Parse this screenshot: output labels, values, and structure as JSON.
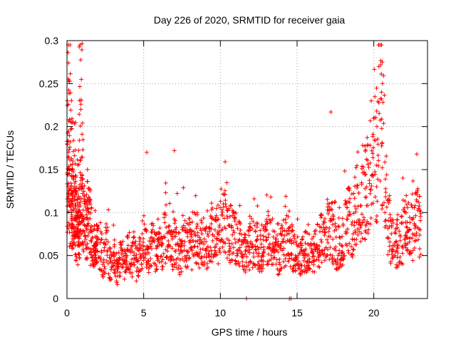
{
  "chart_data": {
    "type": "scatter",
    "title": "Day 226 of 2020, SRMTID for receiver gaia",
    "xlabel": "GPS time / hours",
    "ylabel": "SRMTID / TECUs",
    "xlim": [
      0,
      23.5
    ],
    "ylim": [
      0,
      0.3
    ],
    "x_ticks": [
      0,
      5,
      10,
      15,
      20
    ],
    "x_tick_labels": [
      "0",
      "5",
      "10",
      "15",
      "20"
    ],
    "y_ticks": [
      0,
      0.05,
      0.1,
      0.15,
      0.2,
      0.25,
      0.3
    ],
    "y_tick_labels": [
      "0",
      "0.05",
      "0.1",
      "0.15",
      "0.2",
      "0.25",
      "0.3"
    ],
    "grid": true,
    "marker": "+",
    "color": "#ff0000",
    "series": [
      {
        "name": "SRMTID",
        "x": [
          0.05,
          0.1,
          0.15,
          0.2,
          0.25,
          0.3,
          0.35,
          0.4,
          0.45,
          0.5,
          0.55,
          0.6,
          0.65,
          0.7,
          0.75,
          0.8,
          0.85,
          0.9,
          0.95,
          1.0,
          1.1,
          1.2,
          1.3,
          1.4,
          1.5,
          1.6,
          1.7,
          1.8,
          1.9,
          2.0,
          2.2,
          2.4,
          2.6,
          2.8,
          3.0,
          3.2,
          3.4,
          3.6,
          3.8,
          4.0,
          4.2,
          4.4,
          4.6,
          4.8,
          5.0,
          5.2,
          5.4,
          5.6,
          5.8,
          6.0,
          6.2,
          6.4,
          6.6,
          6.8,
          7.0,
          7.2,
          7.4,
          7.6,
          7.8,
          8.0,
          8.2,
          8.4,
          8.6,
          8.8,
          9.0,
          9.2,
          9.4,
          9.6,
          9.8,
          10.0,
          10.2,
          10.4,
          10.6,
          10.8,
          11.0,
          11.2,
          11.4,
          11.6,
          11.8,
          12.0,
          12.2,
          12.4,
          12.6,
          12.8,
          13.0,
          13.2,
          13.4,
          13.6,
          13.8,
          14.0,
          14.2,
          14.4,
          14.6,
          14.8,
          15.0,
          15.2,
          15.4,
          15.6,
          15.8,
          16.0,
          16.2,
          16.4,
          16.6,
          16.8,
          17.0,
          17.2,
          17.4,
          17.6,
          17.8,
          18.0,
          18.2,
          18.4,
          18.6,
          18.8,
          19.0,
          19.2,
          19.4,
          19.6,
          19.8,
          20.0,
          20.2,
          20.4,
          20.6,
          20.8,
          21.0,
          21.2,
          21.4,
          21.6,
          21.8,
          22.0,
          22.2,
          22.4,
          22.6,
          22.8,
          23.0
        ],
        "y": [
          0.13,
          0.17,
          0.2,
          0.18,
          0.1,
          0.085,
          0.12,
          0.15,
          0.11,
          0.09,
          0.1,
          0.13,
          0.08,
          0.09,
          0.07,
          0.1,
          0.12,
          0.22,
          0.16,
          0.11,
          0.09,
          0.1,
          0.08,
          0.11,
          0.09,
          0.07,
          0.06,
          0.05,
          0.055,
          0.06,
          0.05,
          0.045,
          0.06,
          0.04,
          0.05,
          0.035,
          0.045,
          0.05,
          0.04,
          0.055,
          0.045,
          0.06,
          0.04,
          0.05,
          0.07,
          0.06,
          0.05,
          0.065,
          0.055,
          0.06,
          0.05,
          0.07,
          0.06,
          0.055,
          0.065,
          0.06,
          0.05,
          0.07,
          0.06,
          0.065,
          0.055,
          0.07,
          0.06,
          0.065,
          0.07,
          0.06,
          0.075,
          0.065,
          0.07,
          0.08,
          0.09,
          0.085,
          0.075,
          0.08,
          0.07,
          0.065,
          0.06,
          0.055,
          0.06,
          0.07,
          0.065,
          0.06,
          0.055,
          0.06,
          0.065,
          0.07,
          0.06,
          0.055,
          0.05,
          0.06,
          0.065,
          0.07,
          0.06,
          0.055,
          0.05,
          0.045,
          0.05,
          0.055,
          0.06,
          0.05,
          0.055,
          0.06,
          0.07,
          0.065,
          0.08,
          0.075,
          0.07,
          0.06,
          0.065,
          0.07,
          0.08,
          0.09,
          0.085,
          0.1,
          0.095,
          0.11,
          0.12,
          0.13,
          0.15,
          0.19,
          0.16,
          0.24,
          0.18,
          0.12,
          0.09,
          0.07,
          0.06,
          0.065,
          0.07,
          0.08,
          0.085,
          0.075,
          0.08,
          0.09,
          0.085
        ]
      }
    ],
    "highlights": [
      {
        "x": 0.9,
        "y": 0.22
      },
      {
        "x": 20.55,
        "y": 0.275
      },
      {
        "x": 20.5,
        "y": 0.24
      },
      {
        "x": 17.2,
        "y": 0.217
      },
      {
        "x": 0.55,
        "y": 0.205
      },
      {
        "x": 20.2,
        "y": 0.2
      },
      {
        "x": 22.8,
        "y": 0.168
      },
      {
        "x": 7.0,
        "y": 0.172
      },
      {
        "x": 5.2,
        "y": 0.17
      }
    ],
    "zero_points": [
      11.7,
      14.5,
      14.6
    ]
  }
}
